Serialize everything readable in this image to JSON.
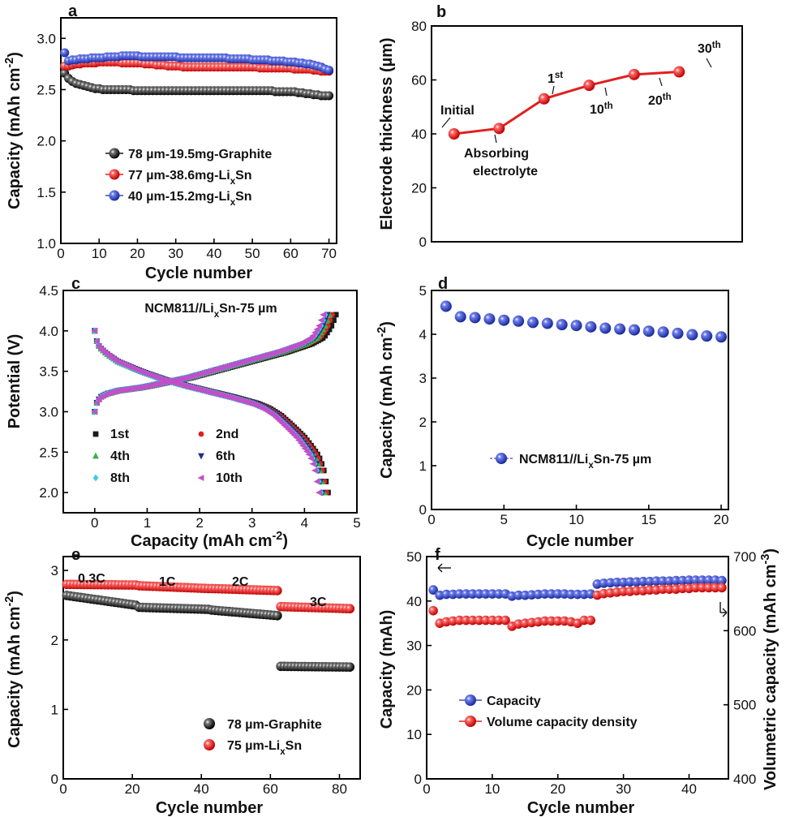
{
  "colors": {
    "black": "#1a1a1a",
    "red": "#e02020",
    "blue": "#3a4fc0",
    "green": "#3cb043",
    "navy": "#1f2f8f",
    "cyan": "#40c8e8",
    "magenta": "#c050c8"
  },
  "chart_data": [
    {
      "panel": "a",
      "type": "scatter",
      "xlabel": "Cycle number",
      "ylabel": "Capacity (mAh cm⁻²)",
      "xlim": [
        0,
        72
      ],
      "ylim": [
        1.0,
        3.2
      ],
      "xticks": [
        0,
        10,
        20,
        30,
        40,
        50,
        60,
        70
      ],
      "yticks": [
        1.0,
        1.5,
        2.0,
        2.5,
        3.0
      ],
      "legend_position": "center-left",
      "series": [
        {
          "name": "78 µm-19.5mg-Graphite",
          "color": "black",
          "x_range": [
            1,
            70
          ],
          "y": [
            2.66,
            2.61,
            2.58,
            2.56,
            2.55,
            2.54,
            2.53,
            2.52,
            2.51,
            2.51,
            2.5,
            2.5,
            2.5,
            2.5,
            2.5,
            2.5,
            2.5,
            2.5,
            2.49,
            2.49,
            2.49,
            2.49,
            2.49,
            2.49,
            2.49,
            2.49,
            2.49,
            2.49,
            2.49,
            2.49,
            2.49,
            2.49,
            2.49,
            2.49,
            2.49,
            2.49,
            2.49,
            2.49,
            2.49,
            2.49,
            2.49,
            2.49,
            2.49,
            2.49,
            2.49,
            2.49,
            2.49,
            2.49,
            2.49,
            2.49,
            2.49,
            2.49,
            2.49,
            2.49,
            2.49,
            2.48,
            2.48,
            2.48,
            2.48,
            2.48,
            2.48,
            2.47,
            2.47,
            2.46,
            2.46,
            2.45,
            2.45,
            2.44,
            2.44,
            2.44
          ]
        },
        {
          "name": "77 µm-38.6mg-LixSn",
          "color": "red",
          "x_range": [
            1,
            70
          ],
          "y": [
            2.73,
            2.73,
            2.74,
            2.75,
            2.75,
            2.76,
            2.76,
            2.76,
            2.76,
            2.77,
            2.77,
            2.77,
            2.77,
            2.77,
            2.77,
            2.76,
            2.76,
            2.76,
            2.76,
            2.76,
            2.76,
            2.75,
            2.75,
            2.75,
            2.74,
            2.74,
            2.74,
            2.73,
            2.73,
            2.73,
            2.73,
            2.72,
            2.72,
            2.72,
            2.72,
            2.72,
            2.72,
            2.72,
            2.72,
            2.72,
            2.72,
            2.72,
            2.72,
            2.72,
            2.72,
            2.72,
            2.72,
            2.72,
            2.72,
            2.72,
            2.72,
            2.71,
            2.71,
            2.71,
            2.71,
            2.71,
            2.71,
            2.71,
            2.71,
            2.71,
            2.7,
            2.7,
            2.7,
            2.7,
            2.7,
            2.69,
            2.69,
            2.68,
            2.68,
            2.68
          ]
        },
        {
          "name": "40 µm-15.2mg-LixSn",
          "color": "blue",
          "x_range": [
            1,
            70
          ],
          "y": [
            2.86,
            2.78,
            2.79,
            2.79,
            2.8,
            2.8,
            2.8,
            2.81,
            2.81,
            2.81,
            2.81,
            2.82,
            2.82,
            2.82,
            2.82,
            2.83,
            2.83,
            2.83,
            2.83,
            2.83,
            2.82,
            2.82,
            2.82,
            2.82,
            2.82,
            2.82,
            2.82,
            2.82,
            2.82,
            2.82,
            2.81,
            2.81,
            2.81,
            2.81,
            2.81,
            2.81,
            2.81,
            2.81,
            2.81,
            2.81,
            2.81,
            2.81,
            2.81,
            2.8,
            2.8,
            2.8,
            2.8,
            2.8,
            2.8,
            2.79,
            2.79,
            2.79,
            2.79,
            2.79,
            2.78,
            2.78,
            2.78,
            2.78,
            2.77,
            2.77,
            2.77,
            2.76,
            2.76,
            2.75,
            2.75,
            2.74,
            2.73,
            2.72,
            2.7,
            2.69
          ]
        }
      ]
    },
    {
      "panel": "b",
      "type": "line",
      "ylabel": "Electrode thickness (µm)",
      "xlim": [
        0,
        6.9
      ],
      "ylim": [
        0,
        80
      ],
      "yticks": [
        0,
        20,
        40,
        60,
        80
      ],
      "x": [
        0,
        1,
        2,
        3,
        4,
        5
      ],
      "y": [
        40,
        42,
        53,
        58,
        62,
        63
      ],
      "point_labels": [
        {
          "base": "Initial",
          "sup": ""
        },
        {
          "base": "Absorbing electrolyte",
          "sup": ""
        },
        {
          "base": "1",
          "sup": "st"
        },
        {
          "base": "10",
          "sup": "th"
        },
        {
          "base": "20",
          "sup": "th"
        },
        {
          "base": "30",
          "sup": "th"
        }
      ],
      "color": "red"
    },
    {
      "panel": "c",
      "type": "line",
      "title": "NCM811//LixSn-75 µm",
      "xlabel": "Capacity (mAh cm⁻²)",
      "ylabel": "Potential (V)",
      "xlim": [
        -0.6,
        5
      ],
      "ylim": [
        1.75,
        4.5
      ],
      "xticks": [
        0,
        1,
        2,
        3,
        4,
        5
      ],
      "yticks": [
        2.0,
        2.5,
        3.0,
        3.5,
        4.0,
        4.5
      ],
      "legend_position": "bottom-left",
      "charge_curve": {
        "capacity_fraction": [
          0,
          0.01,
          0.025,
          0.05,
          0.1,
          0.2,
          0.3,
          0.4,
          0.5,
          0.6,
          0.7,
          0.8,
          0.9,
          0.95,
          0.98,
          1.0
        ],
        "voltage": [
          3.0,
          3.12,
          3.18,
          3.22,
          3.26,
          3.3,
          3.36,
          3.42,
          3.5,
          3.58,
          3.66,
          3.74,
          3.84,
          3.92,
          4.05,
          4.2
        ]
      },
      "discharge_curve": {
        "capacity_fraction": [
          0,
          0.005,
          0.02,
          0.05,
          0.1,
          0.2,
          0.3,
          0.4,
          0.5,
          0.6,
          0.7,
          0.75,
          0.8,
          0.85,
          0.9,
          0.93,
          0.96,
          0.98,
          1.0
        ],
        "voltage": [
          4.0,
          3.9,
          3.8,
          3.72,
          3.62,
          3.5,
          3.4,
          3.32,
          3.25,
          3.18,
          3.1,
          3.04,
          2.95,
          2.82,
          2.68,
          2.57,
          2.45,
          2.3,
          2.0
        ]
      },
      "series": [
        {
          "name": "1st",
          "color": "black",
          "charge_capacity": 4.6,
          "discharge_capacity": 4.45
        },
        {
          "name": "2nd",
          "color": "red",
          "charge_capacity": 4.53,
          "discharge_capacity": 4.42
        },
        {
          "name": "4th",
          "color": "green",
          "charge_capacity": 4.48,
          "discharge_capacity": 4.38
        },
        {
          "name": "6th",
          "color": "navy",
          "charge_capacity": 4.44,
          "discharge_capacity": 4.35
        },
        {
          "name": "8th",
          "color": "cyan",
          "charge_capacity": 4.4,
          "discharge_capacity": 4.32
        },
        {
          "name": "10th",
          "color": "magenta",
          "charge_capacity": 4.36,
          "discharge_capacity": 4.28
        }
      ]
    },
    {
      "panel": "d",
      "type": "scatter",
      "xlabel": "Cycle number",
      "ylabel": "Capacity (mAh cm⁻²)",
      "xlim": [
        0,
        20.5
      ],
      "ylim": [
        0,
        5
      ],
      "xticks": [
        0,
        5,
        10,
        15,
        20
      ],
      "yticks": [
        0,
        1,
        2,
        3,
        4,
        5
      ],
      "legend_position": "center",
      "series": [
        {
          "name": "NCM811//LixSn-75 µm",
          "color": "blue",
          "x": [
            1,
            2,
            3,
            4,
            5,
            6,
            7,
            8,
            9,
            10,
            11,
            12,
            13,
            14,
            15,
            16,
            17,
            18,
            19,
            20
          ],
          "y": [
            4.64,
            4.4,
            4.38,
            4.35,
            4.32,
            4.3,
            4.27,
            4.25,
            4.22,
            4.2,
            4.17,
            4.14,
            4.12,
            4.1,
            4.07,
            4.05,
            4.02,
            3.99,
            3.96,
            3.94
          ]
        }
      ]
    },
    {
      "panel": "e",
      "type": "scatter",
      "xlabel": "Cycle number",
      "ylabel": "Capacity (mAh cm⁻²)",
      "xlim": [
        0,
        86
      ],
      "ylim": [
        0,
        3.2
      ],
      "xticks": [
        0,
        20,
        40,
        60,
        80
      ],
      "yticks": [
        0,
        1,
        2,
        3
      ],
      "legend_position": "bottom-right",
      "rate_labels": [
        "0.3C",
        "1C",
        "2C",
        "3C"
      ],
      "series": [
        {
          "name": "78 µm-Graphite",
          "color": "black",
          "x_range": [
            1,
            83
          ],
          "segments": [
            {
              "from": 1,
              "to": 21,
              "start": 2.64,
              "end": 2.5
            },
            {
              "from": 22,
              "to": 42,
              "start": 2.47,
              "end": 2.44
            },
            {
              "from": 43,
              "to": 62,
              "start": 2.43,
              "end": 2.35
            },
            {
              "from": 63,
              "to": 83,
              "start": 1.62,
              "end": 1.61
            }
          ]
        },
        {
          "name": "75 µm-LixSn",
          "color": "red",
          "x_range": [
            1,
            83
          ],
          "segments": [
            {
              "from": 1,
              "to": 21,
              "start": 2.8,
              "end": 2.79
            },
            {
              "from": 22,
              "to": 42,
              "start": 2.78,
              "end": 2.74
            },
            {
              "from": 43,
              "to": 62,
              "start": 2.74,
              "end": 2.71
            },
            {
              "from": 63,
              "to": 83,
              "start": 2.48,
              "end": 2.45
            }
          ]
        }
      ]
    },
    {
      "panel": "f",
      "type": "scatter",
      "xlabel": "Cycle number",
      "ylabel": "Capacity (mAh)",
      "ylabel_right": "Volumetric capacity (mAh cm⁻³)",
      "xlim": [
        0,
        46
      ],
      "ylim": [
        0,
        50
      ],
      "ylim_right": [
        400,
        700
      ],
      "xticks": [
        0,
        10,
        20,
        30,
        40
      ],
      "yticks": [
        0,
        10,
        20,
        30,
        40,
        50
      ],
      "yticks_right": [
        400,
        500,
        600,
        700
      ],
      "legend_position": "bottom-left",
      "series": [
        {
          "name": "Capacity",
          "color": "blue",
          "axis": "left",
          "x": [
            1,
            2,
            3,
            4,
            5,
            6,
            7,
            8,
            9,
            10,
            11,
            12,
            13,
            14,
            15,
            16,
            17,
            18,
            19,
            20,
            21,
            22,
            23,
            24,
            25,
            26,
            27,
            28,
            29,
            30,
            31,
            32,
            33,
            34,
            35,
            36,
            37,
            38,
            39,
            40,
            41,
            42,
            43,
            44,
            45
          ],
          "y": [
            42.5,
            41.3,
            41.5,
            41.5,
            41.6,
            41.6,
            41.6,
            41.6,
            41.6,
            41.6,
            41.6,
            41.6,
            41.1,
            41.3,
            41.3,
            41.4,
            41.5,
            41.6,
            41.6,
            41.6,
            41.6,
            41.5,
            41.5,
            41.5,
            41.6,
            43.8,
            44,
            44.1,
            44.2,
            44.2,
            44.3,
            44.3,
            44.4,
            44.4,
            44.5,
            44.5,
            44.5,
            44.6,
            44.6,
            44.7,
            44.7,
            44.7,
            44.7,
            44.7,
            44.6
          ]
        },
        {
          "name": "Volume capacity density",
          "color": "red",
          "axis": "right",
          "x": [
            1,
            2,
            3,
            4,
            5,
            6,
            7,
            8,
            9,
            10,
            11,
            12,
            13,
            14,
            15,
            16,
            17,
            18,
            19,
            20,
            21,
            22,
            23,
            24,
            25,
            26,
            27,
            28,
            29,
            30,
            31,
            32,
            33,
            34,
            35,
            36,
            37,
            38,
            39,
            40,
            41,
            42,
            43,
            44,
            45
          ],
          "y": [
            627,
            610,
            612,
            613,
            614,
            614,
            614,
            614,
            614,
            614,
            614,
            614,
            606,
            609,
            610,
            611,
            612,
            613,
            613,
            613,
            613,
            612,
            610,
            614,
            614,
            648,
            650,
            651,
            652,
            653,
            653,
            654,
            654,
            655,
            655,
            656,
            656,
            656,
            657,
            657,
            658,
            658,
            658,
            658,
            658
          ]
        }
      ]
    }
  ]
}
